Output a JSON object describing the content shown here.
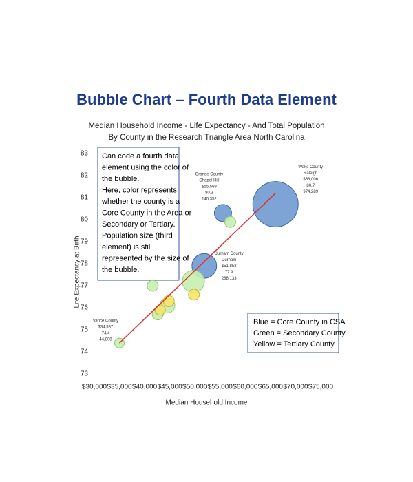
{
  "slide_title": "Bubble Chart – Fourth Data Element",
  "chart_data": {
    "type": "bubble",
    "title": "Median Household Income - Life Expectancy - And Total Population",
    "subtitle": "By County in the Research Triangle Area North Carolina",
    "x_label": "Median Household Income",
    "y_label": "Life Expectancy at Birth",
    "xlim": [
      30000,
      75000
    ],
    "xticks": [
      {
        "value": 30000,
        "label": "$30,000"
      },
      {
        "value": 35000,
        "label": "$35,000"
      },
      {
        "value": 40000,
        "label": "$40,000"
      },
      {
        "value": 45000,
        "label": "$45,000"
      },
      {
        "value": 50000,
        "label": "$50,000"
      },
      {
        "value": 55000,
        "label": "$55,000"
      },
      {
        "value": 60000,
        "label": "$60,000"
      },
      {
        "value": 65000,
        "label": "$65,000"
      },
      {
        "value": 70000,
        "label": "$70,000"
      },
      {
        "value": 75000,
        "label": "$75,000"
      }
    ],
    "ylim": [
      73,
      83
    ],
    "yticks": [
      73,
      74,
      75,
      76,
      77,
      78,
      79,
      80,
      81,
      82,
      83
    ],
    "grid": false,
    "series": [
      {
        "color": "#7099d0",
        "x": [
          66006,
          55569,
          51853
        ],
        "y": [
          80.7,
          80.3,
          77.9
        ],
        "size": [
          974289,
          140352,
          288133
        ],
        "labels": [
          [
            "Wake County",
            "Raleigh",
            "$66,006",
            "80.7",
            "974,289"
          ],
          [
            "Orange County",
            "Chapel Hill",
            "$55,569",
            "80.3",
            "140,352"
          ],
          [
            "Durham County",
            "Durham",
            "$51,853",
            "77.9",
            "288,133"
          ]
        ]
      },
      {
        "color": "#c6efb0",
        "x": [
          34987,
          57000,
          41600,
          49700,
          44500,
          42600
        ],
        "y": [
          74.4,
          79.9,
          77.0,
          77.2,
          76.1,
          75.7
        ],
        "size": [
          44808,
          57000,
          57000,
          230000,
          108000,
          57000
        ],
        "labels": [
          [
            "Vance County",
            "$34,987",
            "74.4",
            "44,808"
          ],
          null,
          null,
          null,
          null,
          null
        ]
      },
      {
        "color": "#f5e66a",
        "x": [
          49800,
          44800,
          43100
        ],
        "y": [
          76.6,
          76.3,
          75.9
        ],
        "size": [
          57000,
          57000,
          50000
        ],
        "labels": [
          null,
          null,
          null
        ]
      }
    ],
    "trendline": {
      "color": "#e03030",
      "x": [
        34987,
        66006
      ],
      "y": [
        74.4,
        81.2
      ]
    },
    "callout": [
      "Can code a fourth data",
      "element using the color of",
      "the bubble.",
      "Here, color represents",
      "whether the county is a",
      "Core County in the Area or",
      "Secondary or Tertiary.",
      "Population size (third",
      "element) is still",
      "represented by the size of",
      "the bubble."
    ],
    "legend_text": [
      "Blue = Core County in CSA",
      "Green = Secondary County",
      "Yellow = Tertiary County"
    ]
  }
}
